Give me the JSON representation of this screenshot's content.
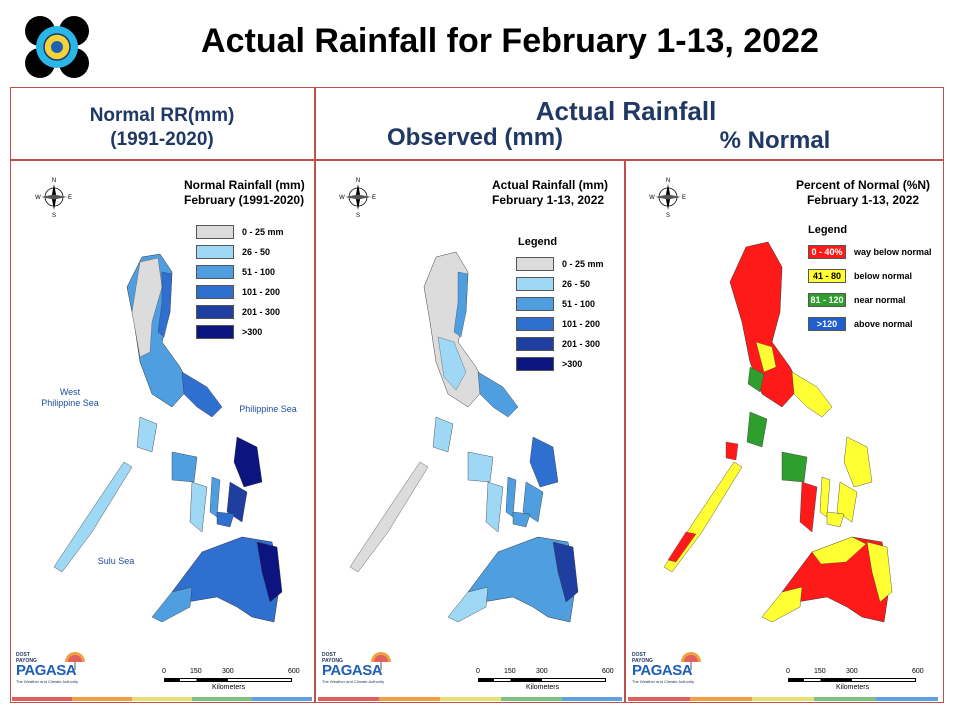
{
  "slide_title": "Actual Rainfall for February 1-13, 2022",
  "headers": {
    "normal_line1": "Normal RR(mm)",
    "normal_line2": "(1991-2020)",
    "actual": "Actual Rainfall",
    "observed": "Observed (mm)",
    "percent": "% Normal"
  },
  "compass": {
    "n": "N",
    "s": "S",
    "e": "E",
    "w": "W"
  },
  "maps": {
    "normal": {
      "title_line1": "Normal Rainfall (mm)",
      "title_line2": "February (1991-2020)",
      "legend": [
        {
          "label": "0 - 25 mm",
          "color": "#dcdcdc"
        },
        {
          "label": "26 - 50",
          "color": "#9fd8f5"
        },
        {
          "label": "51 - 100",
          "color": "#4f9fe0"
        },
        {
          "label": "101 - 200",
          "color": "#2f6fd0"
        },
        {
          "label": "201 - 300",
          "color": "#1f3fa0"
        },
        {
          "label": ">300",
          "color": "#0c1480"
        }
      ],
      "seas": {
        "west_line1": "West",
        "west_line2": "Philippine Sea",
        "east": "Philippine Sea",
        "sulu": "Sulu Sea"
      }
    },
    "actual": {
      "title_line1": "Actual Rainfall (mm)",
      "title_line2": "February 1-13, 2022",
      "legend_title": "Legend",
      "legend": [
        {
          "label": "0 - 25 mm",
          "color": "#dcdcdc"
        },
        {
          "label": "26 - 50",
          "color": "#9fd8f5"
        },
        {
          "label": "51 - 100",
          "color": "#4f9fe0"
        },
        {
          "label": "101 - 200",
          "color": "#2f6fd0"
        },
        {
          "label": "201 - 300",
          "color": "#1f3fa0"
        },
        {
          "label": ">300",
          "color": "#0c1480"
        }
      ]
    },
    "percent": {
      "title_line1": "Percent of Normal (%N)",
      "title_line2": "February 1-13, 2022",
      "legend_title": "Legend",
      "legend": [
        {
          "range": "0 - 40%",
          "label": "way below normal",
          "color": "#ff1a1a"
        },
        {
          "range": "41 - 80",
          "label": "below normal",
          "color": "#ffff33"
        },
        {
          "range": "81 - 120",
          "label": "near normal",
          "color": "#2e9e2e"
        },
        {
          "range": ">120",
          "label": "above normal",
          "color": "#1f5fd0"
        }
      ]
    }
  },
  "scale_bar": {
    "ticks": [
      "0",
      "150",
      "300",
      "600"
    ],
    "unit": "Kilometers"
  },
  "branding": {
    "dost": "DOST",
    "payong": "PAYONG",
    "name": "PAGASA",
    "tagline": "The Weather and Climate Authority"
  },
  "colors": {
    "frame": "#c0504d",
    "header_text": "#1f3864",
    "bar": [
      "#e06060",
      "#f0a040",
      "#e8e070",
      "#80c080",
      "#60a0e0"
    ]
  }
}
